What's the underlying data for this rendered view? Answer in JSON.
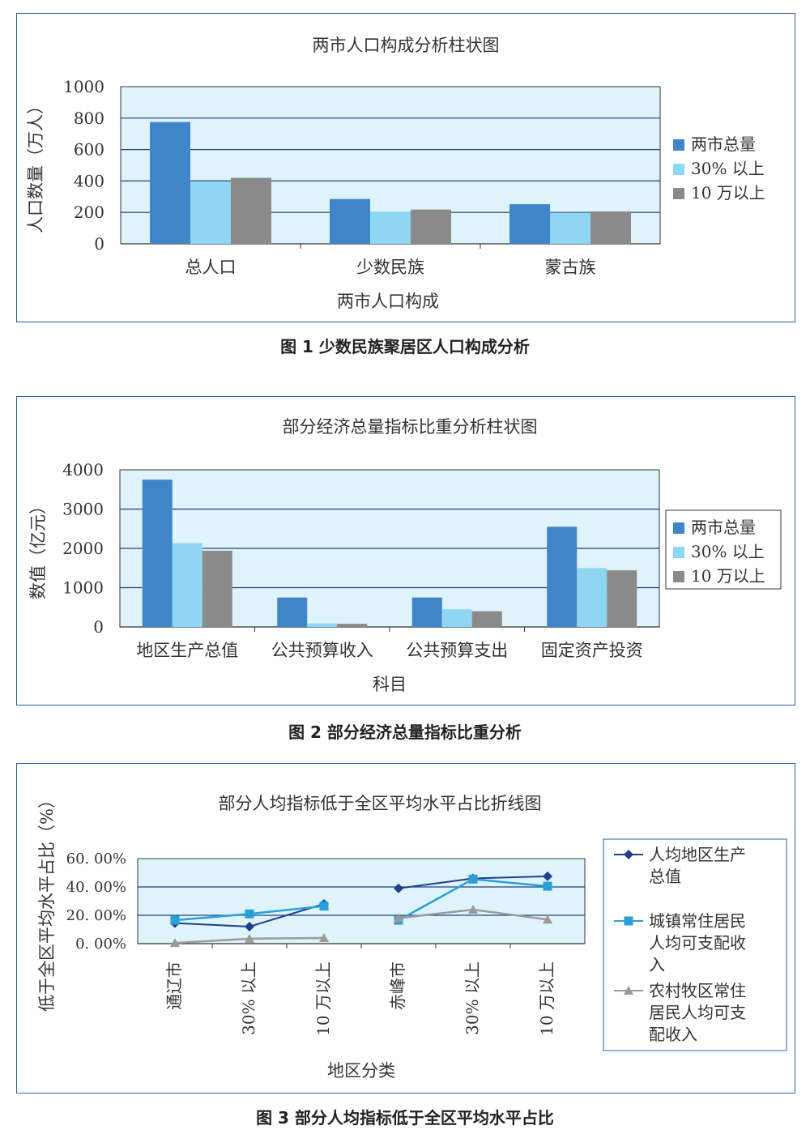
{
  "figures": [
    {
      "caption": "图 1  少数民族聚居区人口构成分析",
      "chart_data": {
        "type": "bar",
        "title": "两市人口构成分析柱状图",
        "xlabel": "两市人口构成",
        "ylabel": "人口数量（万人）",
        "ylim": [
          0,
          1000
        ],
        "yticks": [
          "1000",
          "800",
          "600",
          "400",
          "200",
          "0"
        ],
        "categories": [
          "总人口",
          "少数民族",
          "蒙古族"
        ],
        "series": [
          {
            "name": "两市总量",
            "color": "#3f86c8",
            "values": [
              775,
              285,
              252
            ]
          },
          {
            "name": "30% 以上",
            "color": "#8fd6f4",
            "values": [
              395,
              205,
              198
            ]
          },
          {
            "name": "10 万以上",
            "color": "#8a8a8a",
            "values": [
              420,
              218,
              206
            ]
          }
        ],
        "legend": "right",
        "plot_background": "#dff3fb",
        "grid": true
      }
    },
    {
      "caption": "图 2  部分经济总量指标比重分析",
      "chart_data": {
        "type": "bar",
        "title": "部分经济总量指标比重分析柱状图",
        "xlabel": "科目",
        "ylabel": "数值（亿元）",
        "ylim": [
          0,
          4000
        ],
        "yticks": [
          "4000",
          "3000",
          "2000",
          "1000",
          "0"
        ],
        "categories": [
          "地区生产总值",
          "公共预算收入",
          "公共预算支出",
          "固定资产投资"
        ],
        "series": [
          {
            "name": "两市总量",
            "color": "#3f86c8",
            "values": [
              3750,
              750,
              750,
              2550
            ]
          },
          {
            "name": "30% 以上",
            "color": "#8fd6f4",
            "values": [
              2130,
              90,
              450,
              1500
            ]
          },
          {
            "name": "10 万以上",
            "color": "#8a8a8a",
            "values": [
              1940,
              80,
              400,
              1440
            ]
          }
        ],
        "legend": "right",
        "plot_background": "#dff3fb",
        "grid": true
      }
    },
    {
      "caption": "图 3  部分人均指标低于全区平均水平占比",
      "chart_data": {
        "type": "line",
        "title": "部分人均指标低于全区平均水平占比折线图",
        "xlabel": "地区分类",
        "ylabel": "低于全区平均水平占比（%）",
        "ylim": [
          0,
          60
        ],
        "yticks": [
          "60. 00%",
          "40. 00%",
          "20. 00%",
          "0. 00%"
        ],
        "categories": [
          "通辽市",
          "30% 以上",
          "10 万以上",
          "赤峰市",
          "30% 以上",
          "10 万以上"
        ],
        "series": [
          {
            "name": "人均地区生产总值",
            "legend_lines": [
              "人均地区生产",
              "总值"
            ],
            "color": "#1f3f8f",
            "marker": "diamond",
            "values": [
              14.5,
              12,
              28,
              39,
              46,
              47.5
            ]
          },
          {
            "name": "城镇常住居民人均可支配收入",
            "legend_lines": [
              "城镇常住居民",
              "人均可支配收",
              "入"
            ],
            "color": "#2a9fd8",
            "marker": "square",
            "values": [
              16.5,
              21,
              26.5,
              16.5,
              45.5,
              40.5
            ]
          },
          {
            "name": "农村牧区常住居民人均可支配收入",
            "legend_lines": [
              "农村牧区常住",
              "居民人均可支",
              "配收入"
            ],
            "color": "#9a9a9a",
            "marker": "triangle",
            "values": [
              0.5,
              3.5,
              4,
              18,
              24,
              17
            ]
          }
        ],
        "legend": "right",
        "plot_background": "#dff3fb",
        "grid": true
      }
    }
  ]
}
